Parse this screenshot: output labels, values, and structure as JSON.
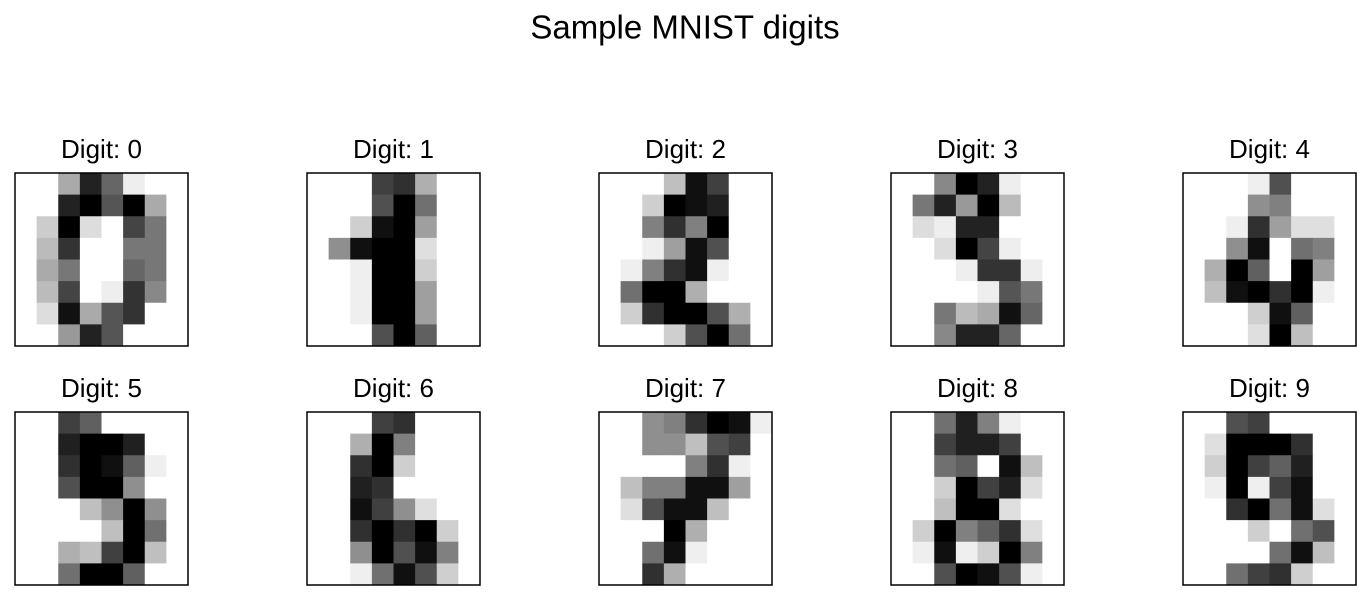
{
  "title": "Sample MNIST digits",
  "chart_data": [
    {
      "type": "heatmap",
      "title": "Digit: 0",
      "values": [
        [
          0,
          0,
          5,
          13,
          9,
          1,
          0,
          0
        ],
        [
          0,
          0,
          13,
          15,
          10,
          15,
          5,
          0
        ],
        [
          0,
          3,
          15,
          2,
          0,
          11,
          8,
          0
        ],
        [
          0,
          4,
          12,
          0,
          0,
          8,
          8,
          0
        ],
        [
          0,
          5,
          8,
          0,
          0,
          9,
          8,
          0
        ],
        [
          0,
          4,
          11,
          0,
          1,
          12,
          7,
          0
        ],
        [
          0,
          2,
          14,
          5,
          10,
          12,
          0,
          0
        ],
        [
          0,
          0,
          6,
          13,
          10,
          0,
          0,
          0
        ]
      ]
    },
    {
      "type": "heatmap",
      "title": "Digit: 1",
      "values": [
        [
          0,
          0,
          0,
          12,
          13,
          5,
          0,
          0
        ],
        [
          0,
          0,
          0,
          11,
          16,
          9,
          0,
          0
        ],
        [
          0,
          0,
          3,
          15,
          16,
          6,
          0,
          0
        ],
        [
          0,
          7,
          15,
          16,
          16,
          2,
          0,
          0
        ],
        [
          0,
          0,
          1,
          16,
          16,
          3,
          0,
          0
        ],
        [
          0,
          0,
          1,
          16,
          16,
          6,
          0,
          0
        ],
        [
          0,
          0,
          1,
          16,
          16,
          6,
          0,
          0
        ],
        [
          0,
          0,
          0,
          11,
          16,
          10,
          0,
          0
        ]
      ]
    },
    {
      "type": "heatmap",
      "title": "Digit: 2",
      "values": [
        [
          0,
          0,
          0,
          4,
          15,
          12,
          0,
          0
        ],
        [
          0,
          0,
          3,
          16,
          15,
          14,
          0,
          0
        ],
        [
          0,
          0,
          8,
          13,
          8,
          16,
          0,
          0
        ],
        [
          0,
          0,
          1,
          6,
          15,
          11,
          0,
          0
        ],
        [
          0,
          1,
          8,
          13,
          15,
          1,
          0,
          0
        ],
        [
          0,
          9,
          16,
          16,
          5,
          0,
          0,
          0
        ],
        [
          0,
          3,
          13,
          16,
          16,
          11,
          5,
          0
        ],
        [
          0,
          0,
          0,
          3,
          11,
          16,
          9,
          0
        ]
      ]
    },
    {
      "type": "heatmap",
      "title": "Digit: 3",
      "values": [
        [
          0,
          0,
          7,
          15,
          13,
          1,
          0,
          0
        ],
        [
          0,
          8,
          13,
          6,
          15,
          4,
          0,
          0
        ],
        [
          0,
          2,
          1,
          13,
          13,
          0,
          0,
          0
        ],
        [
          0,
          0,
          2,
          15,
          11,
          1,
          0,
          0
        ],
        [
          0,
          0,
          0,
          1,
          12,
          12,
          1,
          0
        ],
        [
          0,
          0,
          0,
          0,
          1,
          10,
          8,
          0
        ],
        [
          0,
          0,
          8,
          4,
          5,
          14,
          9,
          0
        ],
        [
          0,
          0,
          7,
          13,
          13,
          9,
          0,
          0
        ]
      ]
    },
    {
      "type": "heatmap",
      "title": "Digit: 4",
      "values": [
        [
          0,
          0,
          0,
          1,
          11,
          0,
          0,
          0
        ],
        [
          0,
          0,
          0,
          7,
          8,
          0,
          0,
          0
        ],
        [
          0,
          0,
          1,
          13,
          6,
          2,
          2,
          0
        ],
        [
          0,
          0,
          7,
          15,
          0,
          9,
          8,
          0
        ],
        [
          0,
          5,
          16,
          10,
          0,
          16,
          6,
          0
        ],
        [
          0,
          4,
          15,
          16,
          13,
          16,
          1,
          0
        ],
        [
          0,
          0,
          0,
          3,
          15,
          10,
          0,
          0
        ],
        [
          0,
          0,
          0,
          2,
          16,
          4,
          0,
          0
        ]
      ]
    },
    {
      "type": "heatmap",
      "title": "Digit: 5",
      "values": [
        [
          0,
          0,
          12,
          10,
          0,
          0,
          0,
          0
        ],
        [
          0,
          0,
          14,
          16,
          16,
          14,
          0,
          0
        ],
        [
          0,
          0,
          13,
          16,
          15,
          10,
          1,
          0
        ],
        [
          0,
          0,
          11,
          16,
          16,
          7,
          0,
          0
        ],
        [
          0,
          0,
          0,
          4,
          7,
          16,
          7,
          0
        ],
        [
          0,
          0,
          0,
          0,
          4,
          16,
          9,
          0
        ],
        [
          0,
          0,
          5,
          4,
          12,
          16,
          4,
          0
        ],
        [
          0,
          0,
          9,
          16,
          16,
          10,
          0,
          0
        ]
      ]
    },
    {
      "type": "heatmap",
      "title": "Digit: 6",
      "values": [
        [
          0,
          0,
          0,
          12,
          13,
          0,
          0,
          0
        ],
        [
          0,
          0,
          5,
          16,
          8,
          0,
          0,
          0
        ],
        [
          0,
          0,
          13,
          16,
          3,
          0,
          0,
          0
        ],
        [
          0,
          0,
          14,
          13,
          0,
          0,
          0,
          0
        ],
        [
          0,
          0,
          15,
          12,
          7,
          2,
          0,
          0
        ],
        [
          0,
          0,
          13,
          16,
          13,
          16,
          3,
          0
        ],
        [
          0,
          0,
          7,
          16,
          11,
          15,
          8,
          0
        ],
        [
          0,
          0,
          1,
          9,
          15,
          11,
          3,
          0
        ]
      ]
    },
    {
      "type": "heatmap",
      "title": "Digit: 7",
      "values": [
        [
          0,
          0,
          7,
          8,
          13,
          16,
          15,
          1
        ],
        [
          0,
          0,
          7,
          7,
          4,
          11,
          12,
          0
        ],
        [
          0,
          0,
          0,
          0,
          8,
          13,
          1,
          0
        ],
        [
          0,
          4,
          8,
          8,
          15,
          15,
          6,
          0
        ],
        [
          0,
          2,
          11,
          15,
          15,
          4,
          0,
          0
        ],
        [
          0,
          0,
          0,
          16,
          5,
          0,
          0,
          0
        ],
        [
          0,
          0,
          9,
          15,
          1,
          0,
          0,
          0
        ],
        [
          0,
          0,
          13,
          5,
          0,
          0,
          0,
          0
        ]
      ]
    },
    {
      "type": "heatmap",
      "title": "Digit: 8",
      "values": [
        [
          0,
          0,
          9,
          14,
          8,
          1,
          0,
          0
        ],
        [
          0,
          0,
          12,
          14,
          14,
          12,
          0,
          0
        ],
        [
          0,
          0,
          9,
          10,
          0,
          15,
          4,
          0
        ],
        [
          0,
          0,
          3,
          16,
          12,
          14,
          2,
          0
        ],
        [
          0,
          0,
          4,
          16,
          16,
          2,
          0,
          0
        ],
        [
          0,
          3,
          16,
          8,
          10,
          13,
          2,
          0
        ],
        [
          0,
          1,
          15,
          1,
          3,
          16,
          8,
          0
        ],
        [
          0,
          0,
          11,
          16,
          15,
          11,
          1,
          0
        ]
      ]
    },
    {
      "type": "heatmap",
      "title": "Digit: 9",
      "values": [
        [
          0,
          0,
          11,
          12,
          0,
          0,
          0,
          0
        ],
        [
          0,
          2,
          16,
          16,
          16,
          13,
          0,
          0
        ],
        [
          0,
          3,
          16,
          12,
          10,
          14,
          0,
          0
        ],
        [
          0,
          1,
          16,
          1,
          12,
          15,
          0,
          0
        ],
        [
          0,
          0,
          13,
          16,
          9,
          15,
          2,
          0
        ],
        [
          0,
          0,
          0,
          3,
          0,
          9,
          11,
          0
        ],
        [
          0,
          0,
          0,
          0,
          9,
          15,
          4,
          0
        ],
        [
          0,
          0,
          9,
          12,
          13,
          3,
          0,
          0
        ]
      ]
    }
  ]
}
